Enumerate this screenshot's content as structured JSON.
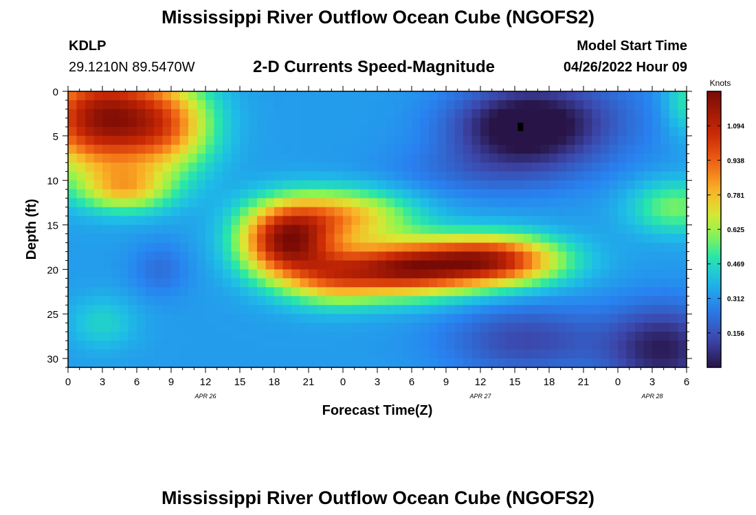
{
  "header": {
    "title": "Mississippi River Outflow Ocean Cube (NGOFS2)",
    "station_id": "KDLP",
    "station_coords": "29.1210N  89.5470W",
    "subtitle": "2-D Currents Speed-Magnitude",
    "model_start_label": "Model Start Time",
    "model_start_value": "04/26/2022 Hour 09"
  },
  "footer": {
    "title": "Mississippi River Outflow Ocean Cube (NGOFS2)"
  },
  "chart_data": {
    "type": "heatmap",
    "title": "2-D Currents Speed-Magnitude",
    "xlabel": "Forecast Time(Z)",
    "ylabel": "Depth (ft)",
    "x_range_hours": [
      0,
      54
    ],
    "ylim": [
      0,
      31
    ],
    "x_ticks": [
      {
        "hour": 0,
        "label": "0"
      },
      {
        "hour": 3,
        "label": "3"
      },
      {
        "hour": 6,
        "label": "6"
      },
      {
        "hour": 9,
        "label": "9"
      },
      {
        "hour": 12,
        "label": "12"
      },
      {
        "hour": 15,
        "label": "15"
      },
      {
        "hour": 18,
        "label": "18"
      },
      {
        "hour": 21,
        "label": "21"
      },
      {
        "hour": 24,
        "label": "0"
      },
      {
        "hour": 27,
        "label": "3"
      },
      {
        "hour": 30,
        "label": "6"
      },
      {
        "hour": 33,
        "label": "9"
      },
      {
        "hour": 36,
        "label": "12"
      },
      {
        "hour": 39,
        "label": "15"
      },
      {
        "hour": 42,
        "label": "18"
      },
      {
        "hour": 45,
        "label": "21"
      },
      {
        "hour": 48,
        "label": "0"
      },
      {
        "hour": 51,
        "label": "3"
      },
      {
        "hour": 54,
        "label": "6"
      }
    ],
    "date_labels": [
      {
        "hour": 12,
        "label": "APR 26"
      },
      {
        "hour": 36,
        "label": "APR 27"
      },
      {
        "hour": 51,
        "label": "APR 28"
      }
    ],
    "y_ticks": [
      0,
      5,
      10,
      15,
      20,
      25,
      30
    ],
    "colorbar": {
      "label": "Knots",
      "vmin": 0.0,
      "vmax": 1.25,
      "ticks": [
        1.094,
        0.938,
        0.781,
        0.625,
        0.469,
        0.312,
        0.156
      ]
    },
    "marker": {
      "hour": 39.5,
      "depth": 4
    },
    "speed_field": {
      "description": "speed (knots) = base + sum of gaussian blobs amp*exp(-((hour-h)/sh)^2 - ((depth-d)/sd)^2)",
      "base": 0.33,
      "blobs": [
        {
          "h": 3,
          "d": 3,
          "sh": 6,
          "sd": 6,
          "amp": 0.85
        },
        {
          "h": 9,
          "d": 4,
          "sh": 4,
          "sd": 5,
          "amp": 0.35
        },
        {
          "h": 5,
          "d": 11,
          "sh": 4,
          "sd": 2.5,
          "amp": 0.35
        },
        {
          "h": 19,
          "d": 17,
          "sh": 4,
          "sd": 4,
          "amp": 0.8
        },
        {
          "h": 24,
          "d": 14,
          "sh": 6,
          "sd": 3,
          "amp": 0.45
        },
        {
          "h": 29,
          "d": 20,
          "sh": 6,
          "sd": 3,
          "amp": 0.75
        },
        {
          "h": 37,
          "d": 19,
          "sh": 6,
          "sd": 2.8,
          "amp": 0.75
        },
        {
          "h": 23,
          "d": 21,
          "sh": 4,
          "sd": 3,
          "amp": 0.35
        },
        {
          "h": 3,
          "d": 26,
          "sh": 3,
          "sd": 3,
          "amp": 0.12
        },
        {
          "h": 53,
          "d": 13,
          "sh": 4,
          "sd": 3,
          "amp": 0.25
        },
        {
          "h": 54,
          "d": 1,
          "sh": 2,
          "sd": 4,
          "amp": 0.18
        },
        {
          "h": 8,
          "d": 20,
          "sh": 2.5,
          "sd": 3,
          "amp": -0.1
        },
        {
          "h": 39.5,
          "d": 4,
          "sh": 6,
          "sd": 4,
          "amp": -0.3
        },
        {
          "h": 43,
          "d": 3,
          "sh": 8,
          "sd": 6,
          "amp": -0.15
        },
        {
          "h": 52,
          "d": 29,
          "sh": 5,
          "sd": 5,
          "amp": -0.3
        },
        {
          "h": 40,
          "d": 28,
          "sh": 7,
          "sd": 4,
          "amp": -0.2
        },
        {
          "h": 36,
          "d": 9,
          "sh": 8,
          "sd": 3,
          "amp": -0.1
        }
      ]
    }
  }
}
